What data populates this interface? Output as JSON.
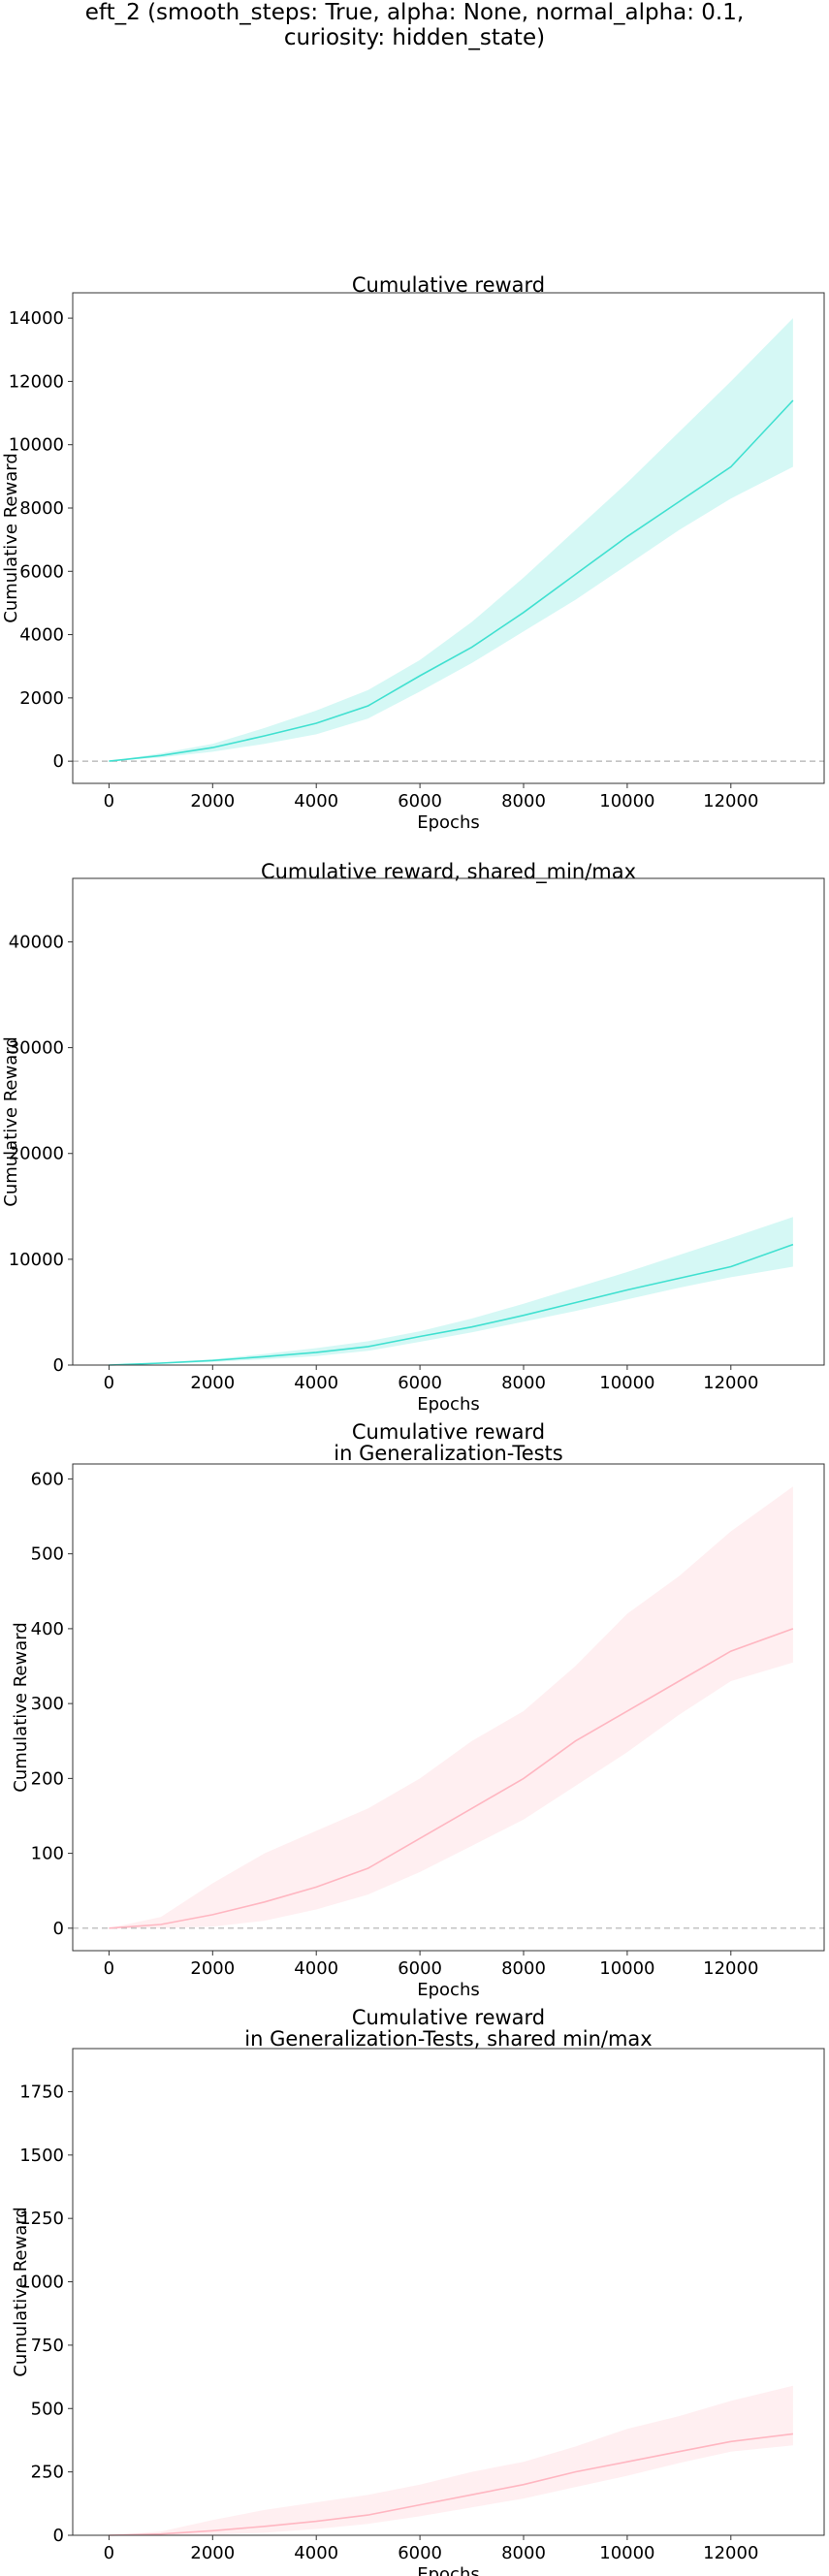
{
  "figure": {
    "suptitle_lines": [
      "eft_2 (smooth_steps: True, alpha: None, normal_alpha: 0.1,",
      "curiosity: hidden_state)"
    ]
  },
  "chart_data": [
    {
      "type": "line",
      "title_lines": [
        "Cumulative reward"
      ],
      "xlabel": "Epochs",
      "ylabel": "Cumulative Reward",
      "xlim": [
        -700,
        13800
      ],
      "ylim": [
        -700,
        14800
      ],
      "xticks": [
        0,
        2000,
        4000,
        6000,
        8000,
        10000,
        12000
      ],
      "yticks": [
        0,
        2000,
        4000,
        6000,
        8000,
        10000,
        12000,
        14000
      ],
      "zero_line": true,
      "color": "#40e0d0",
      "x": [
        0,
        1000,
        2000,
        3000,
        4000,
        5000,
        6000,
        7000,
        8000,
        9000,
        10000,
        11000,
        12000,
        13200
      ],
      "mean": [
        0,
        180,
        430,
        800,
        1200,
        1750,
        2700,
        3600,
        4700,
        5900,
        7100,
        8200,
        9300,
        11400
      ],
      "lower": [
        0,
        120,
        300,
        550,
        850,
        1350,
        2200,
        3100,
        4100,
        5100,
        6200,
        7300,
        8300,
        9300
      ],
      "upper": [
        0,
        250,
        550,
        1050,
        1600,
        2250,
        3200,
        4400,
        5800,
        7300,
        8800,
        10400,
        12000,
        14000
      ]
    },
    {
      "type": "line",
      "title_lines": [
        "Cumulative reward, shared_min/max"
      ],
      "xlabel": "Epochs",
      "ylabel": "Cumulative Reward",
      "xlim": [
        -700,
        13800
      ],
      "ylim": [
        0,
        46000
      ],
      "xticks": [
        0,
        2000,
        4000,
        6000,
        8000,
        10000,
        12000
      ],
      "yticks": [
        0,
        10000,
        20000,
        30000,
        40000
      ],
      "zero_line": false,
      "color": "#40e0d0",
      "x": [
        0,
        1000,
        2000,
        3000,
        4000,
        5000,
        6000,
        7000,
        8000,
        9000,
        10000,
        11000,
        12000,
        13200
      ],
      "mean": [
        0,
        180,
        430,
        800,
        1200,
        1750,
        2700,
        3600,
        4700,
        5900,
        7100,
        8200,
        9300,
        11400
      ],
      "lower": [
        0,
        120,
        300,
        550,
        850,
        1350,
        2200,
        3100,
        4100,
        5100,
        6200,
        7300,
        8300,
        9300
      ],
      "upper": [
        0,
        250,
        550,
        1050,
        1600,
        2250,
        3200,
        4400,
        5800,
        7300,
        8800,
        10400,
        12000,
        14000
      ]
    },
    {
      "type": "line",
      "title_lines": [
        "Cumulative reward",
        "in Generalization-Tests"
      ],
      "xlabel": "Epochs",
      "ylabel": "Cumulative Reward",
      "xlim": [
        -700,
        13800
      ],
      "ylim": [
        -30,
        620
      ],
      "xticks": [
        0,
        2000,
        4000,
        6000,
        8000,
        10000,
        12000
      ],
      "yticks": [
        0,
        100,
        200,
        300,
        400,
        500,
        600
      ],
      "zero_line": true,
      "color": "#ffb6c1",
      "x": [
        0,
        1000,
        2000,
        3000,
        4000,
        5000,
        6000,
        7000,
        8000,
        9000,
        10000,
        11000,
        12000,
        13200
      ],
      "mean": [
        0,
        5,
        18,
        35,
        55,
        80,
        120,
        160,
        200,
        250,
        290,
        330,
        370,
        400
      ],
      "lower": [
        0,
        0,
        2,
        10,
        25,
        45,
        75,
        110,
        145,
        190,
        235,
        285,
        330,
        355
      ],
      "upper": [
        0,
        15,
        60,
        100,
        130,
        160,
        200,
        250,
        290,
        350,
        420,
        470,
        530,
        590
      ]
    },
    {
      "type": "line",
      "title_lines": [
        "Cumulative reward",
        "in Generalization-Tests, shared min/max"
      ],
      "xlabel": "Epochs",
      "ylabel": "Cumulative Reward",
      "xlim": [
        -700,
        13800
      ],
      "ylim": [
        0,
        1920
      ],
      "xticks": [
        0,
        2000,
        4000,
        6000,
        8000,
        10000,
        12000
      ],
      "yticks": [
        0,
        250,
        500,
        750,
        1000,
        1250,
        1500,
        1750
      ],
      "zero_line": false,
      "color": "#ffb6c1",
      "x": [
        0,
        1000,
        2000,
        3000,
        4000,
        5000,
        6000,
        7000,
        8000,
        9000,
        10000,
        11000,
        12000,
        13200
      ],
      "mean": [
        0,
        5,
        18,
        35,
        55,
        80,
        120,
        160,
        200,
        250,
        290,
        330,
        370,
        400
      ],
      "lower": [
        0,
        0,
        2,
        10,
        25,
        45,
        75,
        110,
        145,
        190,
        235,
        285,
        330,
        355
      ],
      "upper": [
        0,
        15,
        60,
        100,
        130,
        160,
        200,
        250,
        290,
        350,
        420,
        470,
        530,
        590
      ]
    }
  ]
}
